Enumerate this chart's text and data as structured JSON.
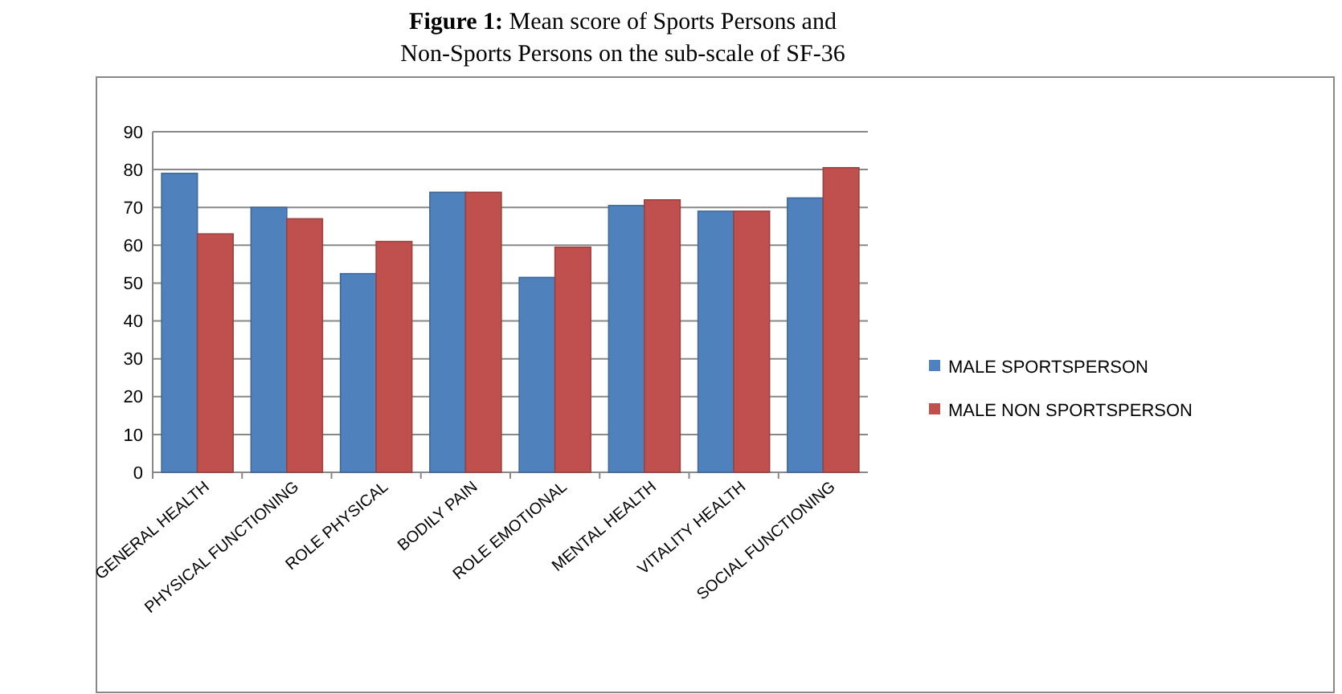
{
  "chart_data": {
    "type": "bar",
    "title": "Figure 1: Mean score of Sports Persons and Non-Sports Persons on the sub-scale of SF-36",
    "categories": [
      "GENERAL HEALTH",
      "PHYSICAL FUNCTIONING",
      "ROLE PHYSICAL",
      "BODILY PAIN",
      "ROLE EMOTIONAL",
      "MENTAL HEALTH",
      "VITALITY HEALTH",
      "SOCIAL FUNCTIONING"
    ],
    "series": [
      {
        "name": "MALE SPORTSPERSON",
        "color": "#4f81bd",
        "values": [
          79,
          70,
          52.5,
          74,
          51.5,
          70.5,
          69,
          72.5
        ]
      },
      {
        "name": "MALE NON SPORTSPERSON",
        "color": "#c0504d",
        "values": [
          63,
          67,
          61,
          74,
          59.5,
          72,
          69,
          80.5
        ]
      }
    ],
    "ylim": [
      0,
      90
    ],
    "yticks": [
      0,
      10,
      20,
      30,
      40,
      50,
      60,
      70,
      80,
      90
    ],
    "grid": "y",
    "legend": "right"
  }
}
